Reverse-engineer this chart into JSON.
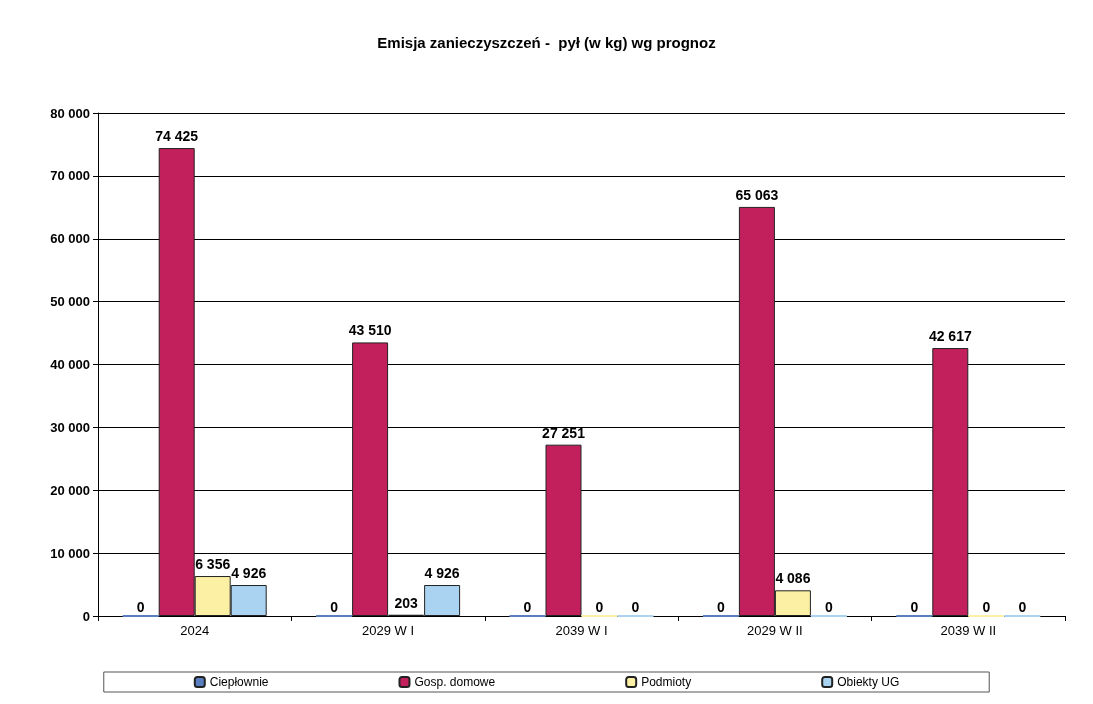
{
  "chart_data": {
    "type": "bar",
    "title": "Emisja zanieczyszczeń -  pył (w kg) wg prognoz",
    "categories": [
      "2024",
      "2029 W I",
      "2039 W I",
      "2029 W II",
      "2039 W II"
    ],
    "series": [
      {
        "name": "Ciepłownie",
        "color": "#5a7fc0",
        "values": [
          0,
          0,
          0,
          0,
          0
        ],
        "value_labels": [
          "0",
          "0",
          "0",
          "0",
          "0"
        ]
      },
      {
        "name": "Gosp. domowe",
        "color": "#c2205c",
        "values": [
          74425,
          43510,
          27251,
          65063,
          42617
        ],
        "value_labels": [
          "74 425",
          "43 510",
          "27 251",
          "65 063",
          "42 617"
        ]
      },
      {
        "name": "Podmioty",
        "color": "#fbf0a4",
        "values": [
          6356,
          203,
          0,
          4086,
          0
        ],
        "value_labels": [
          "6 356",
          "203",
          "0",
          "4 086",
          "0"
        ]
      },
      {
        "name": "Obiekty UG",
        "color": "#a9d3f0",
        "values": [
          4926,
          4926,
          0,
          0,
          0
        ],
        "value_labels": [
          "4 926",
          "4 926",
          "0",
          "0",
          "0"
        ]
      }
    ],
    "ylim": [
      0,
      80000
    ],
    "yticks": [
      {
        "value": 0,
        "label": "0"
      },
      {
        "value": 10000,
        "label": "10 000"
      },
      {
        "value": 20000,
        "label": "20 000"
      },
      {
        "value": 30000,
        "label": "30 000"
      },
      {
        "value": 40000,
        "label": "40 000"
      },
      {
        "value": 50000,
        "label": "50 000"
      },
      {
        "value": 60000,
        "label": "60 000"
      },
      {
        "value": 70000,
        "label": "70 000"
      },
      {
        "value": 80000,
        "label": "80 000"
      }
    ],
    "grid": "y",
    "legend": "bottom"
  }
}
